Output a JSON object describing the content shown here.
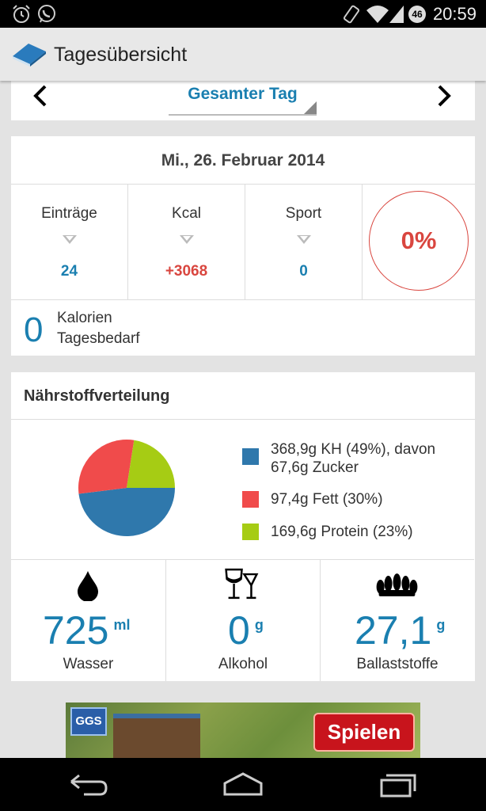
{
  "status_bar": {
    "time": "20:59",
    "network_badge": "46",
    "icons": [
      "alarm-icon",
      "whatsapp-icon",
      "rotate-icon",
      "wifi-icon",
      "signal-icon",
      "battery-icon"
    ]
  },
  "action_bar": {
    "title": "Tagesübersicht",
    "icon": "book-icon"
  },
  "day_selector": {
    "label": "Gesamter Tag",
    "prev_icon": "chevron-left-icon",
    "next_icon": "chevron-right-icon"
  },
  "summary": {
    "date": "Mi., 26. Februar 2014",
    "stats": [
      {
        "label": "Einträge",
        "value": "24",
        "color": "#1a7fb0"
      },
      {
        "label": "Kcal",
        "value": "+3068",
        "color": "#d9463f"
      },
      {
        "label": "Sport",
        "value": "0",
        "color": "#1a7fb0"
      }
    ],
    "percent": "0%",
    "calories_value": "0",
    "calories_label_1": "Kalorien",
    "calories_label_2": "Tagesbedarf"
  },
  "nutrients": {
    "heading": "Nährstoffverteilung",
    "legend": [
      {
        "text": "368,9g KH (49%), davon 67,6g Zucker",
        "color": "#2f78ac"
      },
      {
        "text": "97,4g Fett (30%)",
        "color": "#f04b4b"
      },
      {
        "text": "169,6g Protein (23%)",
        "color": "#a6cc14"
      }
    ],
    "metrics": [
      {
        "icon": "water-drop-icon",
        "value": "725",
        "unit": "ml",
        "name": "Wasser"
      },
      {
        "icon": "wine-glass-icon",
        "value": "0",
        "unit": "g",
        "name": "Alkohol"
      },
      {
        "icon": "grain-icon",
        "value": "27,1",
        "unit": "g",
        "name": "Ballaststoffe"
      }
    ]
  },
  "chart_data": {
    "type": "pie",
    "categories": [
      "KH",
      "Fett",
      "Protein"
    ],
    "values": [
      49,
      30,
      23
    ],
    "colors": [
      "#2f78ac",
      "#f04b4b",
      "#a6cc14"
    ]
  },
  "ad": {
    "logo_text": "GGS",
    "button_label": "Spielen"
  },
  "nav_bar": {
    "icons": [
      "back-icon",
      "home-icon",
      "recents-icon"
    ]
  }
}
